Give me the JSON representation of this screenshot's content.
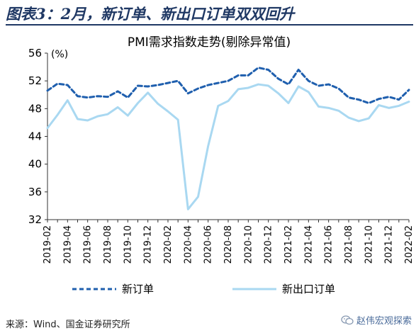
{
  "figure_title": "图表3：2月，新订单、新出口订单双双回升",
  "source_note": "来源：Wind、国金证券研究所",
  "watermark": "赵伟宏观探索",
  "icons": {
    "watermark": "wechat-icon"
  },
  "colors": {
    "title": "#1f3864",
    "new_orders": "#1f5fae",
    "new_export_orders": "#a9d8f1"
  },
  "chart_data": {
    "type": "line",
    "title": "PMI需求指数走势(剔除异常值)",
    "unit_label": "(%)",
    "ylim": [
      32,
      56
    ],
    "yticks": [
      32,
      36,
      40,
      44,
      48,
      52,
      56
    ],
    "x": [
      "2019-02",
      "2019-03",
      "2019-04",
      "2019-05",
      "2019-06",
      "2019-07",
      "2019-08",
      "2019-09",
      "2019-10",
      "2019-11",
      "2019-12",
      "2020-01",
      "2020-02",
      "2020-03",
      "2020-04",
      "2020-05",
      "2020-06",
      "2020-07",
      "2020-08",
      "2020-09",
      "2020-10",
      "2020-11",
      "2020-12",
      "2021-01",
      "2021-02",
      "2021-03",
      "2021-04",
      "2021-05",
      "2021-06",
      "2021-07",
      "2021-08",
      "2021-09",
      "2021-10",
      "2021-11",
      "2021-12",
      "2022-01",
      "2022-02"
    ],
    "xtick_labels": [
      "2019-02",
      "2019-04",
      "2019-06",
      "2019-08",
      "2019-10",
      "2019-12",
      "2020-02",
      "2020-04",
      "2020-06",
      "2020-08",
      "2020-10",
      "2020-12",
      "2021-02",
      "2021-04",
      "2021-06",
      "2021-08",
      "2021-10",
      "2021-12",
      "2022-02"
    ],
    "legend_position": "bottom",
    "grid": false,
    "series": [
      {
        "name": "新订单",
        "style": "dashed",
        "values": [
          50.6,
          51.6,
          51.4,
          49.8,
          49.6,
          49.8,
          49.7,
          50.5,
          49.6,
          51.3,
          51.2,
          51.4,
          51.7,
          52.0,
          50.2,
          50.9,
          51.4,
          51.7,
          52.0,
          52.8,
          52.8,
          53.9,
          53.6,
          52.3,
          51.5,
          53.6,
          52.0,
          51.3,
          51.5,
          50.9,
          49.6,
          49.3,
          48.8,
          49.4,
          49.7,
          49.3,
          50.7
        ]
      },
      {
        "name": "新出口订单",
        "style": "solid",
        "values": [
          45.2,
          47.1,
          49.2,
          46.5,
          46.3,
          46.9,
          47.2,
          48.2,
          47.0,
          48.8,
          50.3,
          48.7,
          47.6,
          46.4,
          33.5,
          35.3,
          42.6,
          48.4,
          49.1,
          50.8,
          51.0,
          51.5,
          51.3,
          50.2,
          48.8,
          51.2,
          50.4,
          48.3,
          48.1,
          47.7,
          46.7,
          46.2,
          46.6,
          48.5,
          48.1,
          48.4,
          49.0
        ]
      }
    ]
  }
}
